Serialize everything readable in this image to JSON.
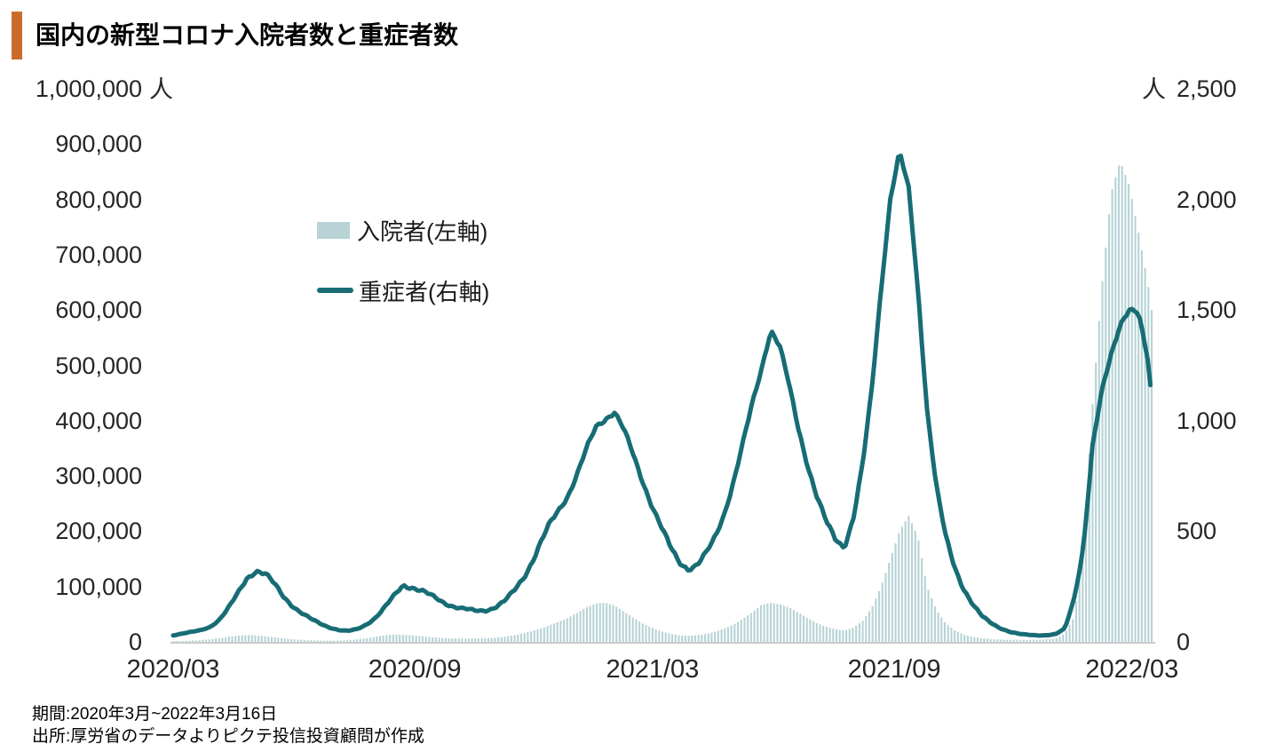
{
  "title": "国内の新型コロナ入院者数と重症者数",
  "legend": {
    "items": [
      {
        "label": "入院者(左軸)",
        "series": "hospitalized",
        "swatch": "bar"
      },
      {
        "label": "重症者(右軸)",
        "series": "severe",
        "swatch": "line"
      }
    ]
  },
  "axes": {
    "left": {
      "unit": "人",
      "ticks": [
        "1,000,000",
        "900,000",
        "800,000",
        "700,000",
        "600,000",
        "500,000",
        "400,000",
        "300,000",
        "200,000",
        "100,000",
        "0"
      ]
    },
    "right": {
      "unit": "人",
      "ticks": [
        "2,500",
        "2,000",
        "1,500",
        "1,000",
        "500",
        "0"
      ]
    },
    "x": {
      "labels": [
        "2020/03",
        "2020/09",
        "2021/03",
        "2021/09",
        "2022/03"
      ]
    }
  },
  "footer": {
    "period": "期間:2020年3月~2022年3月16日",
    "source": "出所:厚労省のデータよりピクテ投信投資顧問が作成"
  },
  "colors": {
    "accent_orange": "#cb6b2b",
    "line_teal": "#176c75",
    "bar_fill": "#b7d3d6",
    "baseline_gray": "#cbcbcb",
    "text_dark": "#262626"
  },
  "chart_data": {
    "type": "bar+line (dual axis)",
    "title": "国内の新型コロナ入院者数と重症者数",
    "x_start": "2020/03/01",
    "x_end": "2022/03/16",
    "total_days": 745,
    "sample_interval_days": 7,
    "grid": "off",
    "legend_position": "upper-left inside plot",
    "left_axis": {
      "unit": "人",
      "range": [
        0,
        1000000
      ],
      "tick_step": 100000
    },
    "right_axis": {
      "unit": "人",
      "range": [
        0,
        2500
      ],
      "tick_step": 500
    },
    "x_tick_labels": [
      "2020/03",
      "2020/09",
      "2021/03",
      "2021/09",
      "2022/03"
    ],
    "x_tick_day_offsets": [
      0,
      184,
      365,
      549,
      730
    ],
    "series": [
      {
        "name": "入院者(左軸)",
        "type": "bar",
        "axis": "left",
        "color": "#b7d3d6",
        "values": [
          1200,
          1700,
          2300,
          3200,
          4800,
          6800,
          9200,
          11300,
          12300,
          11800,
          10300,
          8300,
          6300,
          4800,
          3700,
          2900,
          2400,
          2100,
          2300,
          3100,
          4600,
          6600,
          9200,
          11800,
          13400,
          13000,
          11700,
          10200,
          8700,
          7500,
          6700,
          6100,
          5900,
          6100,
          6600,
          7600,
          9200,
          11700,
          15200,
          19500,
          24500,
          30500,
          37000,
          44000,
          53000,
          63000,
          69500,
          71000,
          66000,
          55000,
          44000,
          34000,
          26000,
          19500,
          15000,
          12000,
          11000,
          12000,
          14500,
          18500,
          24500,
          32000,
          42000,
          54000,
          67000,
          70500,
          68000,
          62000,
          53000,
          43000,
          34000,
          27500,
          23000,
          20500,
          26000,
          38000,
          62000,
          100000,
          150000,
          200000,
          228000,
          190000,
          100000,
          58000,
          34000,
          21000,
          13500,
          9000,
          6500,
          5000,
          4200,
          3800,
          3600,
          3700,
          4000,
          4500,
          6000,
          16000,
          45000,
          180000,
          430000,
          640000,
          810000,
          870000,
          825000,
          740000,
          650000,
          600000
        ]
      },
      {
        "name": "重症者(右軸)",
        "type": "line",
        "axis": "right",
        "color": "#176c75",
        "values": [
          30,
          38,
          45,
          52,
          68,
          100,
          152,
          215,
          287,
          325,
          308,
          260,
          205,
          163,
          130,
          103,
          82,
          66,
          54,
          49,
          57,
          78,
          110,
          155,
          205,
          256,
          248,
          232,
          210,
          187,
          168,
          155,
          146,
          140,
          143,
          156,
          182,
          225,
          285,
          360,
          450,
          535,
          600,
          668,
          765,
          875,
          972,
          1010,
          1040,
          960,
          850,
          735,
          625,
          525,
          435,
          365,
          332,
          345,
          400,
          480,
          590,
          730,
          900,
          1080,
          1240,
          1410,
          1330,
          1160,
          970,
          800,
          655,
          545,
          470,
          430,
          560,
          800,
          1150,
          1600,
          2000,
          2210,
          2050,
          1600,
          1050,
          700,
          480,
          340,
          240,
          165,
          115,
          85,
          62,
          45,
          36,
          32,
          30,
          30,
          35,
          60,
          200,
          430,
          880,
          1130,
          1300,
          1440,
          1500,
          1480,
          1280,
          1100
        ]
      }
    ]
  }
}
